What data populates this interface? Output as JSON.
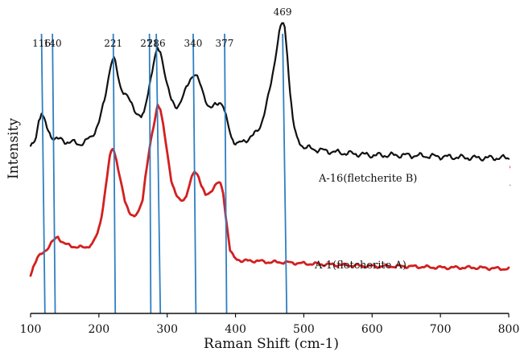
{
  "chart_data": {
    "type": "line",
    "title": "",
    "xlabel": "Raman Shift (cm-1)",
    "ylabel": "Intensity",
    "xlim": [
      100,
      800
    ],
    "ylim": [
      0,
      1
    ],
    "grid": false,
    "x_ticks": [
      100,
      200,
      300,
      400,
      500,
      600,
      700,
      800
    ],
    "y_ticks_shown": false,
    "series": [
      {
        "name": "A-16(fletcherite B)",
        "color": "#111111",
        "noise": 0.012,
        "points": [
          [
            100,
            0.54
          ],
          [
            105,
            0.55
          ],
          [
            108,
            0.58
          ],
          [
            112,
            0.64
          ],
          [
            116,
            0.67
          ],
          [
            120,
            0.64
          ],
          [
            125,
            0.6
          ],
          [
            130,
            0.58
          ],
          [
            140,
            0.57
          ],
          [
            150,
            0.56
          ],
          [
            160,
            0.56
          ],
          [
            170,
            0.55
          ],
          [
            180,
            0.56
          ],
          [
            190,
            0.58
          ],
          [
            200,
            0.63
          ],
          [
            208,
            0.71
          ],
          [
            214,
            0.8
          ],
          [
            218,
            0.85
          ],
          [
            221,
            0.87
          ],
          [
            224,
            0.85
          ],
          [
            228,
            0.8
          ],
          [
            232,
            0.76
          ],
          [
            238,
            0.74
          ],
          [
            245,
            0.71
          ],
          [
            252,
            0.68
          ],
          [
            258,
            0.66
          ],
          [
            262,
            0.65
          ],
          [
            266,
            0.66
          ],
          [
            271,
            0.73
          ],
          [
            276,
            0.8
          ],
          [
            281,
            0.86
          ],
          [
            286,
            0.9
          ],
          [
            290,
            0.89
          ],
          [
            294,
            0.85
          ],
          [
            300,
            0.77
          ],
          [
            306,
            0.71
          ],
          [
            312,
            0.69
          ],
          [
            318,
            0.7
          ],
          [
            324,
            0.73
          ],
          [
            330,
            0.77
          ],
          [
            335,
            0.8
          ],
          [
            340,
            0.81
          ],
          [
            345,
            0.79
          ],
          [
            350,
            0.76
          ],
          [
            356,
            0.72
          ],
          [
            360,
            0.69
          ],
          [
            365,
            0.68
          ],
          [
            371,
            0.7
          ],
          [
            377,
            0.71
          ],
          [
            382,
            0.69
          ],
          [
            388,
            0.63
          ],
          [
            394,
            0.58
          ],
          [
            398,
            0.56
          ],
          [
            404,
            0.55
          ],
          [
            410,
            0.56
          ],
          [
            418,
            0.57
          ],
          [
            425,
            0.58
          ],
          [
            432,
            0.6
          ],
          [
            438,
            0.63
          ],
          [
            444,
            0.68
          ],
          [
            450,
            0.75
          ],
          [
            455,
            0.82
          ],
          [
            460,
            0.9
          ],
          [
            464,
            0.96
          ],
          [
            467,
            0.99
          ],
          [
            469,
            1.0
          ],
          [
            472,
            0.98
          ],
          [
            476,
            0.88
          ],
          [
            480,
            0.74
          ],
          [
            485,
            0.62
          ],
          [
            490,
            0.57
          ],
          [
            500,
            0.54
          ],
          [
            520,
            0.53
          ],
          [
            550,
            0.52
          ],
          [
            600,
            0.51
          ],
          [
            650,
            0.51
          ],
          [
            700,
            0.505
          ],
          [
            750,
            0.5
          ],
          [
            800,
            0.5
          ]
        ]
      },
      {
        "name": "A-1(fletcherite A)",
        "color": "#d32020",
        "noise": 0.007,
        "points": [
          [
            100,
            0.07
          ],
          [
            104,
            0.1
          ],
          [
            110,
            0.13
          ],
          [
            118,
            0.15
          ],
          [
            126,
            0.17
          ],
          [
            132,
            0.19
          ],
          [
            140,
            0.21
          ],
          [
            146,
            0.19
          ],
          [
            152,
            0.18
          ],
          [
            160,
            0.175
          ],
          [
            170,
            0.17
          ],
          [
            180,
            0.17
          ],
          [
            190,
            0.18
          ],
          [
            198,
            0.22
          ],
          [
            205,
            0.3
          ],
          [
            212,
            0.43
          ],
          [
            217,
            0.52
          ],
          [
            221,
            0.54
          ],
          [
            226,
            0.49
          ],
          [
            232,
            0.41
          ],
          [
            238,
            0.34
          ],
          [
            245,
            0.3
          ],
          [
            252,
            0.28
          ],
          [
            258,
            0.3
          ],
          [
            264,
            0.35
          ],
          [
            268,
            0.43
          ],
          [
            271,
            0.48
          ],
          [
            276,
            0.56
          ],
          [
            281,
            0.63
          ],
          [
            286,
            0.7
          ],
          [
            290,
            0.68
          ],
          [
            294,
            0.62
          ],
          [
            300,
            0.52
          ],
          [
            306,
            0.42
          ],
          [
            313,
            0.36
          ],
          [
            320,
            0.34
          ],
          [
            328,
            0.36
          ],
          [
            335,
            0.42
          ],
          [
            340,
            0.45
          ],
          [
            345,
            0.44
          ],
          [
            350,
            0.4
          ],
          [
            356,
            0.36
          ],
          [
            362,
            0.37
          ],
          [
            370,
            0.4
          ],
          [
            377,
            0.41
          ],
          [
            382,
            0.37
          ],
          [
            387,
            0.26
          ],
          [
            392,
            0.16
          ],
          [
            398,
            0.13
          ],
          [
            410,
            0.12
          ],
          [
            430,
            0.12
          ],
          [
            450,
            0.115
          ],
          [
            469,
            0.115
          ],
          [
            500,
            0.11
          ],
          [
            550,
            0.105
          ],
          [
            600,
            0.1
          ],
          [
            650,
            0.1
          ],
          [
            700,
            0.095
          ],
          [
            750,
            0.095
          ],
          [
            800,
            0.09
          ]
        ]
      }
    ],
    "peak_markers": {
      "color": "#2f7fc1",
      "items": [
        {
          "label": "116",
          "x_top": 116,
          "x_bottom": 121
        },
        {
          "label": "140",
          "x_top": 132,
          "x_bottom": 136
        },
        {
          "label": "221",
          "x_top": 221,
          "x_bottom": 224
        },
        {
          "label": "271",
          "x_top": 274,
          "x_bottom": 276
        },
        {
          "label": "286",
          "x_top": 284,
          "x_bottom": 290
        },
        {
          "label": "340",
          "x_top": 338,
          "x_bottom": 342
        },
        {
          "label": "377",
          "x_top": 384,
          "x_bottom": 387
        },
        {
          "label": "469",
          "x_top": 469,
          "x_bottom": 475
        }
      ]
    }
  }
}
